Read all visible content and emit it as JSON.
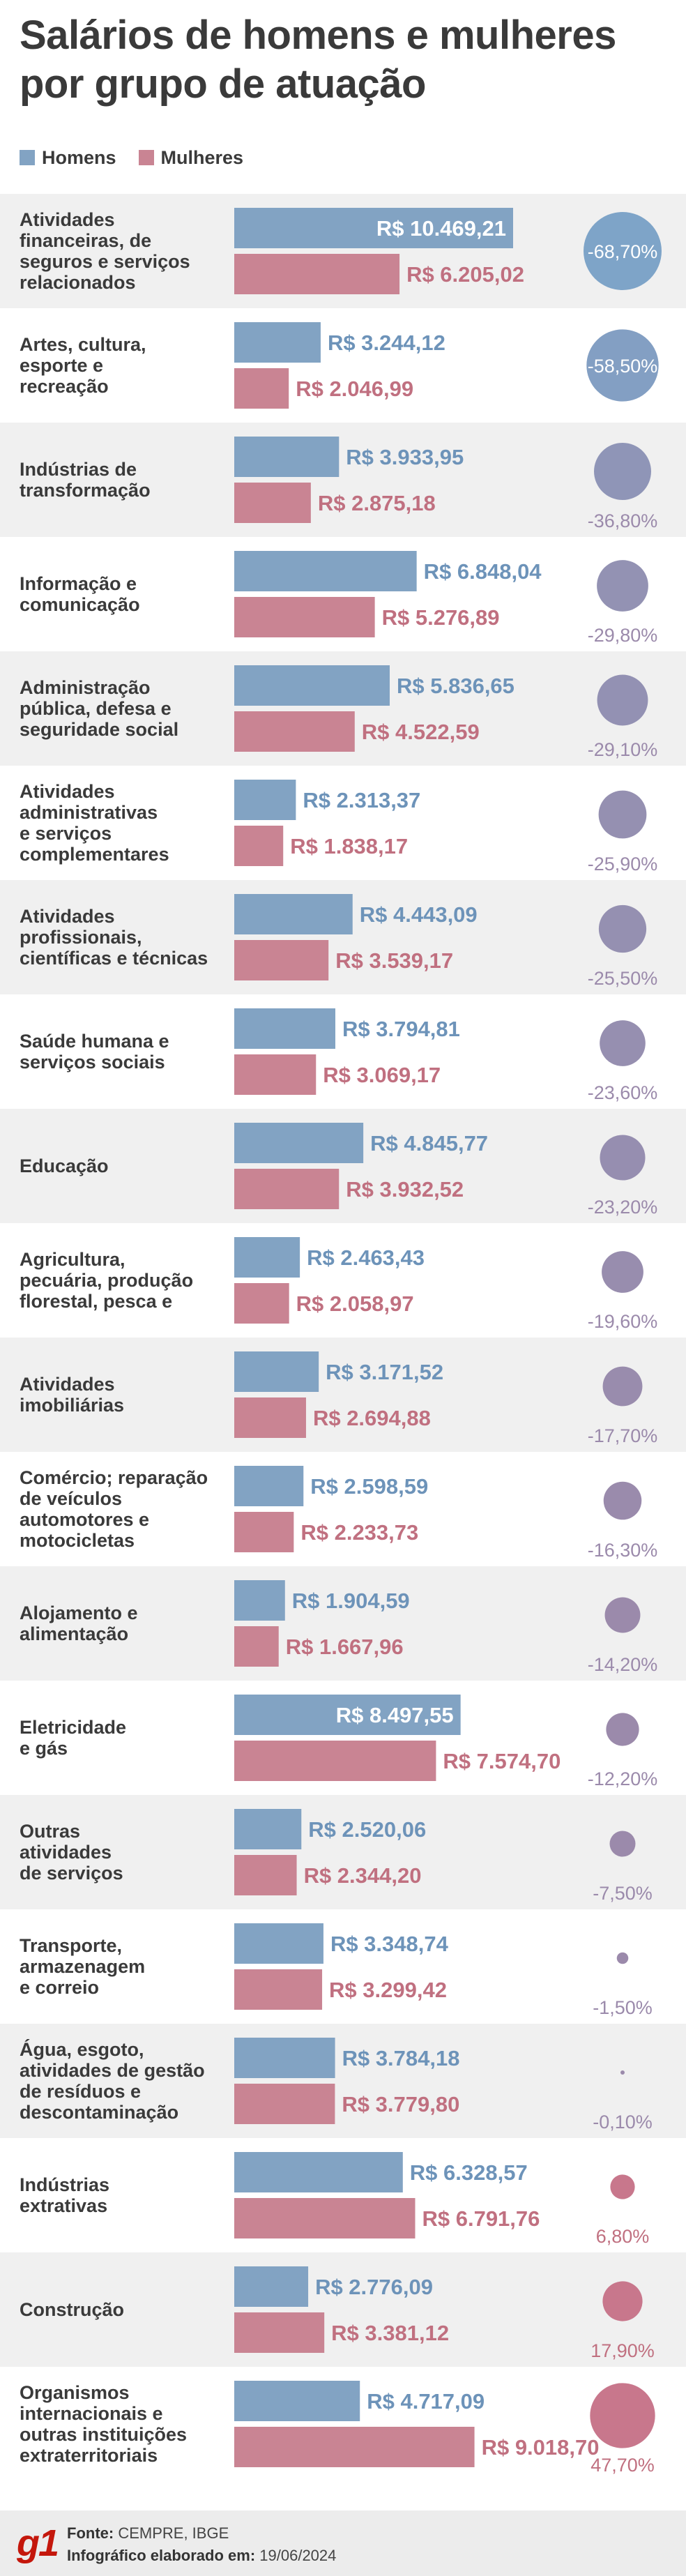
{
  "header": {
    "title": "Salários de homens e mulheres por grupo de atuação"
  },
  "legend": {
    "men_label": "Homens",
    "women_label": "Mulheres"
  },
  "colors": {
    "men": "#82a3c3",
    "women": "#c98493",
    "men_text": "#6d93b9",
    "women_text": "#c07080",
    "band": "#f0f0f0",
    "bubble_blue": "#7ea4c8",
    "bubble_purple": "#9b8aab",
    "bubble_pink": "#c8778c"
  },
  "chart_data": {
    "type": "bar",
    "title": "Salários de homens e mulheres por grupo de atuação",
    "xlim": [
      0,
      10469.21
    ],
    "series": [
      {
        "name": "Homens",
        "values": [
          10469.21,
          3244.12,
          3933.95,
          6848.04,
          5836.65,
          2313.37,
          4443.09,
          3794.81,
          4845.77,
          2463.43,
          3171.52,
          2598.59,
          1904.59,
          8497.55,
          2520.06,
          3348.74,
          3784.18,
          6328.57,
          2776.09,
          4717.09
        ]
      },
      {
        "name": "Mulheres",
        "values": [
          6205.02,
          2046.99,
          2875.18,
          5276.89,
          4522.59,
          1838.17,
          3539.17,
          3069.17,
          3932.52,
          2058.97,
          2694.88,
          2233.73,
          1667.96,
          7574.7,
          2344.2,
          3299.42,
          3779.8,
          6791.76,
          3381.12,
          9018.7
        ]
      }
    ],
    "categories": [
      "Atividades financeiras, de seguros e serviços relacionados",
      "Artes, cultura, esporte e recreação",
      "Indústrias de transformação",
      "Informação e comunicação",
      "Administração pública, defesa e seguridade social",
      "Atividades administrativas e serviços complementares",
      "Atividades profissionais, científicas e técnicas",
      "Saúde humana e serviços sociais",
      "Educação",
      "Agricultura, pecuária, produção florestal, pesca e",
      "Atividades imobiliárias",
      "Comércio; reparação de veículos automotores e motocicletas",
      "Alojamento e alimentação",
      "Eletricidade e gás",
      "Outras atividades de serviços",
      "Transporte, armazenagem e correio",
      "Água, esgoto, atividades de gestão de resíduos e descontaminação",
      "Indústrias extrativas",
      "Construção",
      "Organismos internacionais e outras instituições extraterritoriais"
    ],
    "category_lines": [
      [
        "Atividades",
        "financeiras, de",
        "seguros e serviços",
        "relacionados"
      ],
      [
        "Artes, cultura,",
        "esporte e",
        "recreação"
      ],
      [
        "Indústrias de",
        "transformação"
      ],
      [
        "Informação e",
        "comunicação"
      ],
      [
        "Administração",
        "pública, defesa e",
        "seguridade social"
      ],
      [
        "Atividades",
        "administrativas",
        "e serviços",
        "complementares"
      ],
      [
        "Atividades",
        "profissionais,",
        "científicas e técnicas"
      ],
      [
        "Saúde humana e",
        "serviços sociais"
      ],
      [
        "Educação"
      ],
      [
        "Agricultura,",
        "pecuária, produção",
        "florestal, pesca e"
      ],
      [
        "Atividades",
        "imobiliárias"
      ],
      [
        "Comércio; reparação",
        "de veículos",
        "automotores e",
        "motocicletas"
      ],
      [
        "Alojamento e",
        "alimentação"
      ],
      [
        "Eletricidade",
        "e gás"
      ],
      [
        "Outras",
        "atividades",
        "de serviços"
      ],
      [
        "Transporte,",
        "armazenagem",
        "e correio"
      ],
      [
        "Água, esgoto,",
        "atividades de gestão",
        "de resíduos e",
        "descontaminação"
      ],
      [
        "Indústrias",
        "extrativas"
      ],
      [
        "Construção"
      ],
      [
        "Organismos",
        "internacionais e",
        "outras instituições",
        "extraterritoriais"
      ]
    ],
    "men_labels": [
      "R$ 10.469,21",
      "R$ 3.244,12",
      "R$ 3.933,95",
      "R$ 6.848,04",
      "R$ 5.836,65",
      "R$ 2.313,37",
      "R$ 4.443,09",
      "R$ 3.794,81",
      "R$ 4.845,77",
      "R$ 2.463,43",
      "R$ 3.171,52",
      "R$ 2.598,59",
      "R$ 1.904,59",
      "R$ 8.497,55",
      "R$ 2.520,06",
      "R$ 3.348,74",
      "R$ 3.784,18",
      "R$ 6.328,57",
      "R$ 2.776,09",
      "R$ 4.717,09"
    ],
    "women_labels": [
      "R$ 6.205,02",
      "R$ 2.046,99",
      "R$ 2.875,18",
      "R$ 5.276,89",
      "R$ 4.522,59",
      "R$ 1.838,17",
      "R$ 3.539,17",
      "R$ 3.069,17",
      "R$ 3.932,52",
      "R$ 2.058,97",
      "R$ 2.694,88",
      "R$ 2.233,73",
      "R$ 1.667,96",
      "R$ 7.574,70",
      "R$ 2.344,20",
      "R$ 3.299,42",
      "R$ 3.779,80",
      "R$ 6.791,76",
      "R$ 3.381,12",
      "R$ 9.018,70"
    ],
    "pct_values": [
      -68.7,
      -58.5,
      -36.8,
      -29.8,
      -29.1,
      -25.9,
      -25.5,
      -23.6,
      -23.2,
      -19.6,
      -17.7,
      -16.3,
      -14.2,
      -12.2,
      -7.5,
      -1.5,
      -0.1,
      6.8,
      17.9,
      47.7
    ],
    "pct_labels": [
      "-68,70%",
      "-58,50%",
      "-36,80%",
      "-29,80%",
      "-29,10%",
      "-25,90%",
      "-25,50%",
      "-23,60%",
      "-23,20%",
      "-19,60%",
      "-17,70%",
      "-16,30%",
      "-14,20%",
      "-12,20%",
      "-7,50%",
      "-1,50%",
      "-0,10%",
      "6,80%",
      "17,90%",
      "47,70%"
    ]
  },
  "footer": {
    "logo": "g1",
    "source_label": "Fonte:",
    "source_value": "CEMPRE, IBGE",
    "credit_label": "Infográfico elaborado em:",
    "credit_value": "19/06/2024"
  }
}
